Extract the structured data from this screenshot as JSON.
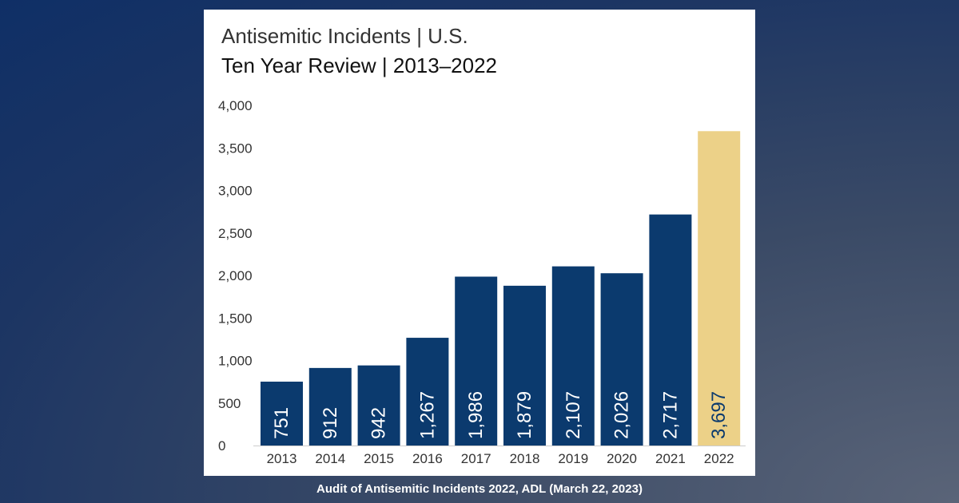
{
  "caption": "Audit of Antisemitic Incidents 2022, ADL (March 22, 2023)",
  "chart_data": {
    "type": "bar",
    "title": "Antisemitic Incidents | U.S.",
    "subtitle": "Ten Year Review | 2013–2022",
    "xlabel": "",
    "ylabel": "",
    "ylim": [
      0,
      4000
    ],
    "yticks": [
      0,
      500,
      1000,
      1500,
      2000,
      2500,
      3000,
      3500,
      4000
    ],
    "ytick_labels": [
      "0",
      "500",
      "1,000",
      "1,500",
      "2,000",
      "2,500",
      "3,000",
      "3,500",
      "4,000"
    ],
    "categories": [
      "2013",
      "2014",
      "2015",
      "2016",
      "2017",
      "2018",
      "2019",
      "2020",
      "2021",
      "2022"
    ],
    "values": [
      751,
      912,
      942,
      1267,
      1986,
      1879,
      2107,
      2026,
      2717,
      3697
    ],
    "value_labels": [
      "751",
      "912",
      "942",
      "1,267",
      "1,986",
      "1,879",
      "2,107",
      "2,026",
      "2,717",
      "3,697"
    ],
    "colors": {
      "bar": "#0b3a6e",
      "highlight": "#ecd188",
      "label_on_bar": "#ffffff",
      "label_on_highlight": "#0b3a6e",
      "tick_text": "#333333",
      "axis": "#cccccc"
    },
    "highlight_index": 9,
    "grid": false,
    "legend": "none"
  }
}
